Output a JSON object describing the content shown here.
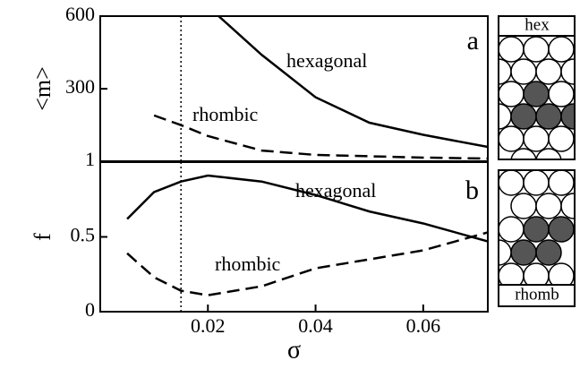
{
  "chart_data": [
    {
      "type": "line",
      "panel_label": "a",
      "ylabel": "<m>",
      "xlim": [
        0,
        0.072
      ],
      "ylim": [
        1,
        600
      ],
      "yticks": [
        1,
        300,
        600
      ],
      "vline": 0.015,
      "series": [
        {
          "name": "hexagonal",
          "color": "#000000",
          "style": "solid",
          "x": [
            0.022,
            0.03,
            0.04,
            0.05,
            0.06,
            0.072
          ],
          "values": [
            600,
            440,
            265,
            160,
            110,
            60
          ]
        },
        {
          "name": "rhombic",
          "color": "#000000",
          "style": "dashed",
          "x": [
            0.01,
            0.015,
            0.02,
            0.03,
            0.04,
            0.06,
            0.072
          ],
          "values": [
            190,
            150,
            105,
            45,
            27,
            16,
            12
          ]
        }
      ]
    },
    {
      "type": "line",
      "panel_label": "b",
      "ylabel": "f",
      "xlabel": "σ",
      "xlim": [
        0,
        0.072
      ],
      "ylim": [
        0,
        1
      ],
      "xticks": [
        0.02,
        0.04,
        0.06
      ],
      "yticks": [
        0,
        0.5
      ],
      "vline": 0.015,
      "series": [
        {
          "name": "hexagonal",
          "color": "#000000",
          "style": "solid",
          "x": [
            0.005,
            0.01,
            0.015,
            0.02,
            0.03,
            0.04,
            0.05,
            0.06,
            0.072
          ],
          "values": [
            0.62,
            0.8,
            0.87,
            0.91,
            0.87,
            0.78,
            0.67,
            0.59,
            0.47
          ]
        },
        {
          "name": "rhombic",
          "color": "#000000",
          "style": "dashed",
          "x": [
            0.005,
            0.01,
            0.015,
            0.02,
            0.03,
            0.04,
            0.05,
            0.06,
            0.072
          ],
          "values": [
            0.39,
            0.23,
            0.14,
            0.11,
            0.17,
            0.29,
            0.35,
            0.41,
            0.53
          ]
        }
      ]
    }
  ],
  "insets": [
    {
      "label": "hex"
    },
    {
      "label": "rhomb"
    }
  ]
}
